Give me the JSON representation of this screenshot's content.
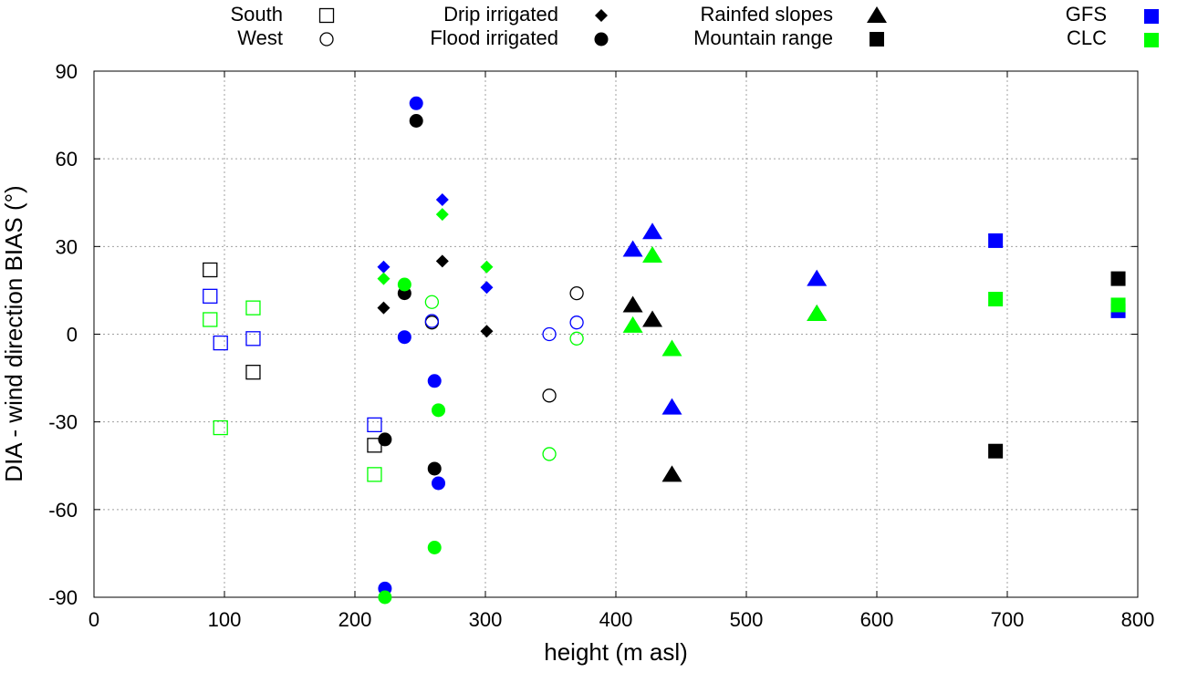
{
  "chart_data": {
    "type": "scatter",
    "xlabel": "height (m asl)",
    "ylabel": "DIA - wind direction BIAS (°)",
    "xlim": [
      0,
      800
    ],
    "ylim": [
      -90,
      90
    ],
    "x_ticks": [
      0,
      100,
      200,
      300,
      400,
      500,
      600,
      700,
      800
    ],
    "y_ticks": [
      -90,
      -60,
      -30,
      0,
      30,
      60,
      90
    ],
    "grid": true,
    "legend_position": "top",
    "colors": {
      "DIA": "#000000",
      "GFS": "#0000ff",
      "CLC": "#00ff00"
    },
    "legend": {
      "sites": [
        {
          "label": "South",
          "marker": "square-open"
        },
        {
          "label": "West",
          "marker": "circle-open"
        },
        {
          "label": "Drip irrigated",
          "marker": "diamond"
        },
        {
          "label": "Flood irrigated",
          "marker": "circle"
        },
        {
          "label": "Rainfed slopes",
          "marker": "triangle"
        },
        {
          "label": "Mountain range",
          "marker": "square"
        }
      ],
      "sources": [
        {
          "label": "GFS",
          "color": "#0000ff"
        },
        {
          "label": "CLC",
          "color": "#00ff00"
        }
      ]
    },
    "series": [
      {
        "site": "South",
        "marker": "square-open",
        "source": "DIA",
        "color": "#000000",
        "points": [
          [
            89,
            22
          ],
          [
            122,
            -13
          ],
          [
            215,
            -38
          ]
        ]
      },
      {
        "site": "South",
        "marker": "square-open",
        "source": "GFS",
        "color": "#0000ff",
        "points": [
          [
            89,
            13
          ],
          [
            97,
            -3
          ],
          [
            122,
            -1.5
          ],
          [
            215,
            -31
          ]
        ]
      },
      {
        "site": "South",
        "marker": "square-open",
        "source": "CLC",
        "color": "#00ff00",
        "points": [
          [
            89,
            5
          ],
          [
            97,
            -32
          ],
          [
            122,
            9
          ],
          [
            215,
            -48
          ]
        ]
      },
      {
        "site": "West",
        "marker": "circle-open",
        "source": "DIA",
        "color": "#000000",
        "points": [
          [
            259,
            4
          ],
          [
            349,
            -21
          ],
          [
            370,
            14
          ]
        ]
      },
      {
        "site": "West",
        "marker": "circle-open",
        "source": "GFS",
        "color": "#0000ff",
        "points": [
          [
            259,
            4.5
          ],
          [
            349,
            0
          ],
          [
            370,
            4
          ]
        ]
      },
      {
        "site": "West",
        "marker": "circle-open",
        "source": "CLC",
        "color": "#00ff00",
        "points": [
          [
            259,
            11
          ],
          [
            349,
            -41
          ],
          [
            370,
            -1.5
          ]
        ]
      },
      {
        "site": "Drip irrigated",
        "marker": "diamond",
        "source": "DIA",
        "color": "#000000",
        "points": [
          [
            222,
            9
          ],
          [
            267,
            25
          ],
          [
            301,
            1
          ]
        ]
      },
      {
        "site": "Drip irrigated",
        "marker": "diamond",
        "source": "GFS",
        "color": "#0000ff",
        "points": [
          [
            222,
            23
          ],
          [
            267,
            46
          ],
          [
            301,
            16
          ]
        ]
      },
      {
        "site": "Drip irrigated",
        "marker": "diamond",
        "source": "CLC",
        "color": "#00ff00",
        "points": [
          [
            222,
            19
          ],
          [
            267,
            41
          ],
          [
            301,
            23
          ]
        ]
      },
      {
        "site": "Flood irrigated",
        "marker": "circle",
        "source": "DIA",
        "color": "#000000",
        "points": [
          [
            223,
            -36
          ],
          [
            238,
            14
          ],
          [
            247,
            73
          ],
          [
            261,
            -46
          ]
        ]
      },
      {
        "site": "Flood irrigated",
        "marker": "circle",
        "source": "GFS",
        "color": "#0000ff",
        "points": [
          [
            223,
            -87
          ],
          [
            238,
            -1
          ],
          [
            247,
            79
          ],
          [
            261,
            -16
          ],
          [
            264,
            -51
          ]
        ]
      },
      {
        "site": "Flood irrigated",
        "marker": "circle",
        "source": "CLC",
        "color": "#00ff00",
        "points": [
          [
            223,
            -90
          ],
          [
            238,
            17
          ],
          [
            261,
            -73
          ],
          [
            264,
            -26
          ]
        ]
      },
      {
        "site": "Rainfed slopes",
        "marker": "triangle",
        "source": "DIA",
        "color": "#000000",
        "points": [
          [
            413,
            10
          ],
          [
            428,
            5
          ],
          [
            443,
            -48
          ],
          [
            554,
            7
          ]
        ]
      },
      {
        "site": "Rainfed slopes",
        "marker": "triangle",
        "source": "GFS",
        "color": "#0000ff",
        "points": [
          [
            413,
            29
          ],
          [
            428,
            35
          ],
          [
            443,
            -25
          ],
          [
            554,
            19
          ]
        ]
      },
      {
        "site": "Rainfed slopes",
        "marker": "triangle",
        "source": "CLC",
        "color": "#00ff00",
        "points": [
          [
            413,
            3
          ],
          [
            428,
            27
          ],
          [
            443,
            -5
          ],
          [
            554,
            7
          ]
        ]
      },
      {
        "site": "Mountain range",
        "marker": "square",
        "source": "DIA",
        "color": "#000000",
        "points": [
          [
            691,
            -40
          ],
          [
            785,
            19
          ]
        ]
      },
      {
        "site": "Mountain range",
        "marker": "square",
        "source": "GFS",
        "color": "#0000ff",
        "points": [
          [
            691,
            32
          ],
          [
            785,
            8
          ]
        ]
      },
      {
        "site": "Mountain range",
        "marker": "square",
        "source": "CLC",
        "color": "#00ff00",
        "points": [
          [
            691,
            12
          ],
          [
            785,
            10
          ]
        ]
      }
    ]
  }
}
